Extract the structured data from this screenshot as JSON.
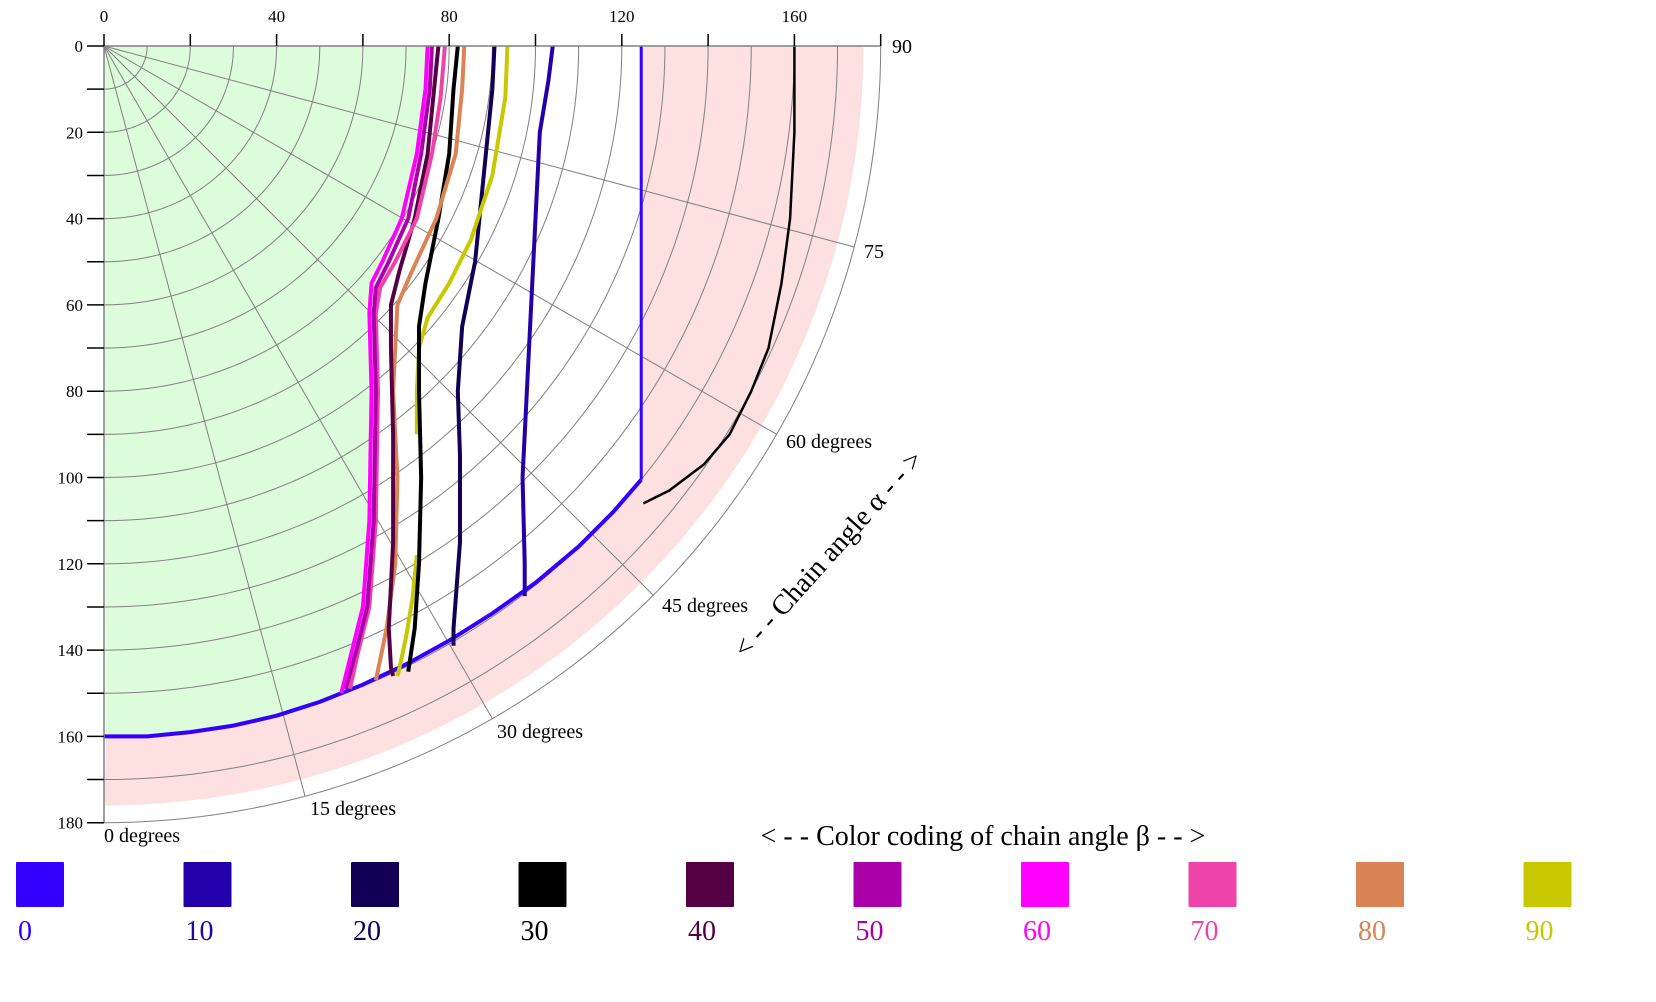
{
  "chart_data": {
    "type": "line",
    "title": "",
    "subtitle": "",
    "plot_kind": "quarter-polar chain-angle map",
    "xlabel": "",
    "ylabel": "",
    "xlim": [
      0,
      180
    ],
    "ylim": [
      0,
      180
    ],
    "x_axis_position": "top",
    "y_axis_direction": "downward",
    "x_ticks": [
      0,
      40,
      80,
      120,
      160
    ],
    "x_tick_labels": [
      "0",
      "40",
      "80",
      "120",
      "160"
    ],
    "x_minor_ticks": [
      0,
      20,
      40,
      60,
      80,
      100,
      120,
      140,
      160,
      180
    ],
    "y_ticks": [
      0,
      20,
      40,
      60,
      80,
      100,
      120,
      140,
      160,
      180
    ],
    "y_tick_labels": [
      "0",
      "20",
      "40",
      "60",
      "80",
      "100",
      "120",
      "140",
      "160",
      "180"
    ],
    "y_minor_ticks": [
      0,
      10,
      20,
      30,
      40,
      50,
      60,
      70,
      80,
      90,
      100,
      110,
      120,
      130,
      140,
      150,
      160,
      170,
      180
    ],
    "grid": true,
    "grid_arcs_radii": [
      10,
      20,
      30,
      40,
      50,
      60,
      70,
      80,
      90,
      100,
      110,
      120,
      130,
      140,
      150,
      160,
      170,
      180
    ],
    "grid_radials_deg": [
      0,
      15,
      30,
      45,
      60,
      75,
      90
    ],
    "angle_labels": [
      {
        "angle": 0,
        "text": "0 degrees"
      },
      {
        "angle": 15,
        "text": "15 degrees"
      },
      {
        "angle": 30,
        "text": "30 degrees"
      },
      {
        "angle": 45,
        "text": "45 degrees"
      },
      {
        "angle": 60,
        "text": "60 degrees"
      },
      {
        "angle": 75,
        "text": "75"
      },
      {
        "angle": 90,
        "text": "90"
      }
    ],
    "alpha_axis_label": "< - - Chain angle α - - >",
    "legend_title": "< - - Color coding of chain angle β - - >",
    "legend_placement": "bottom",
    "regions": [
      {
        "name": "green-zone",
        "color": "#dcfcdc",
        "description": "radius < 160 left of the curves"
      },
      {
        "name": "pink-zone",
        "color": "#fde0e0",
        "description": "radius 160–176 band plus x ≥ 124.5 inside radius 176"
      }
    ],
    "series": [
      {
        "name": "β=0 boundary arc",
        "beta": 0,
        "color": "#3300ff",
        "width": 4,
        "points": [
          [
            0,
            160
          ],
          [
            10,
            160
          ],
          [
            20,
            159
          ],
          [
            30,
            157.5
          ],
          [
            40,
            155.2
          ],
          [
            50,
            152
          ],
          [
            60,
            148
          ],
          [
            70,
            143.3
          ],
          [
            80,
            137.8
          ],
          [
            90,
            131.5
          ],
          [
            100,
            124.4
          ],
          [
            110,
            116
          ],
          [
            118,
            108
          ],
          [
            124.5,
            100.5
          ]
        ]
      },
      {
        "name": "β=0 vertical",
        "beta": 0,
        "color": "#3300ff",
        "width": 3,
        "points": [
          [
            124.5,
            0
          ],
          [
            124.5,
            100.5
          ]
        ]
      },
      {
        "name": "β=30 outer",
        "beta": 30,
        "color": "#000000",
        "width": 2.5,
        "points": [
          [
            160,
            0
          ],
          [
            160,
            20
          ],
          [
            159,
            40
          ],
          [
            157,
            55
          ],
          [
            154,
            70
          ],
          [
            150,
            80
          ],
          [
            145,
            90
          ],
          [
            139,
            97
          ],
          [
            131,
            103
          ],
          [
            125,
            106
          ]
        ]
      },
      {
        "name": "β=10",
        "beta": 10,
        "color": "#2200aa",
        "width": 4,
        "points": [
          [
            104,
            0
          ],
          [
            103,
            8
          ],
          [
            101,
            20
          ],
          [
            100,
            40
          ],
          [
            99,
            60
          ],
          [
            98,
            80
          ],
          [
            97,
            100
          ],
          [
            97.5,
            120
          ],
          [
            97.5,
            127.5
          ]
        ]
      },
      {
        "name": "β=20",
        "beta": 20,
        "color": "#110055",
        "width": 4,
        "points": [
          [
            90.5,
            0
          ],
          [
            90,
            10
          ],
          [
            88,
            30
          ],
          [
            86,
            50
          ],
          [
            83,
            65
          ],
          [
            82,
            80
          ],
          [
            82.5,
            95
          ],
          [
            82.5,
            115
          ],
          [
            81,
            135
          ],
          [
            81,
            139
          ]
        ]
      },
      {
        "name": "β=90",
        "beta": 90,
        "color": "#c8c800",
        "width": 4,
        "points": [
          [
            93.5,
            0
          ],
          [
            93,
            12
          ],
          [
            90,
            30
          ],
          [
            85,
            45
          ],
          [
            80,
            55
          ],
          [
            75,
            63
          ],
          [
            73,
            70
          ],
          [
            72.5,
            80
          ],
          [
            72.5,
            90
          ]
        ]
      },
      {
        "name": "β=90 lower",
        "beta": 90,
        "color": "#c8c800",
        "width": 4,
        "points": [
          [
            72.5,
            118
          ],
          [
            71.5,
            128
          ],
          [
            70,
            137
          ],
          [
            68.5,
            144
          ],
          [
            68,
            146
          ]
        ]
      },
      {
        "name": "β=30",
        "beta": 30,
        "color": "#000000",
        "width": 4,
        "points": [
          [
            82,
            0
          ],
          [
            81,
            10
          ],
          [
            80,
            25
          ],
          [
            77.5,
            40
          ],
          [
            74.5,
            55
          ],
          [
            73,
            65
          ],
          [
            73,
            80
          ],
          [
            73.5,
            100
          ],
          [
            73,
            120
          ],
          [
            72,
            135
          ],
          [
            70.5,
            145
          ]
        ]
      },
      {
        "name": "β=80",
        "beta": 80,
        "color": "#d98356",
        "width": 4,
        "points": [
          [
            83.5,
            0
          ],
          [
            83,
            10
          ],
          [
            81.5,
            25
          ],
          [
            77,
            40
          ],
          [
            71,
            53
          ],
          [
            68,
            60
          ],
          [
            67.5,
            70
          ],
          [
            67,
            80
          ],
          [
            68,
            100
          ],
          [
            67.5,
            120
          ],
          [
            65.5,
            135
          ],
          [
            63,
            147
          ]
        ]
      },
      {
        "name": "β=40",
        "beta": 40,
        "color": "#550044",
        "width": 4,
        "points": [
          [
            77.5,
            0
          ],
          [
            76.5,
            10
          ],
          [
            75,
            25
          ],
          [
            72,
            40
          ],
          [
            68.5,
            52
          ],
          [
            66.5,
            60
          ],
          [
            66.5,
            70
          ],
          [
            67,
            90
          ],
          [
            67,
            115
          ],
          [
            66,
            135
          ],
          [
            66.5,
            144
          ],
          [
            67,
            146
          ]
        ]
      },
      {
        "name": "β=70",
        "beta": 70,
        "color": "#ee44aa",
        "width": 4,
        "points": [
          [
            79,
            0
          ],
          [
            78,
            12
          ],
          [
            76,
            25
          ],
          [
            72.5,
            40
          ],
          [
            67.5,
            50
          ],
          [
            64,
            56
          ],
          [
            63,
            62
          ],
          [
            63.5,
            80
          ],
          [
            63,
            110
          ],
          [
            61.5,
            130
          ],
          [
            59,
            140
          ],
          [
            57,
            149
          ]
        ]
      },
      {
        "name": "β=50",
        "beta": 50,
        "color": "#aa00aa",
        "width": 4,
        "points": [
          [
            76,
            0
          ],
          [
            75.5,
            10
          ],
          [
            73.5,
            25
          ],
          [
            70.5,
            40
          ],
          [
            66,
            50
          ],
          [
            63,
            56
          ],
          [
            62.5,
            62
          ],
          [
            63,
            80
          ],
          [
            62.5,
            110
          ],
          [
            61,
            130
          ],
          [
            58.5,
            140
          ],
          [
            56,
            149
          ]
        ]
      },
      {
        "name": "β=60",
        "beta": 60,
        "color": "#ff00ff",
        "width": 4,
        "points": [
          [
            75,
            0
          ],
          [
            74.5,
            10
          ],
          [
            72.5,
            25
          ],
          [
            69,
            40
          ],
          [
            64.5,
            50
          ],
          [
            62,
            55
          ],
          [
            61.5,
            62
          ],
          [
            62,
            80
          ],
          [
            61.5,
            110
          ],
          [
            60,
            130
          ],
          [
            57.5,
            140
          ],
          [
            55,
            150
          ]
        ]
      }
    ],
    "legend": [
      {
        "label": "0",
        "color": "#3300ff"
      },
      {
        "label": "10",
        "color": "#2200aa"
      },
      {
        "label": "20",
        "color": "#110055"
      },
      {
        "label": "30",
        "color": "#000000"
      },
      {
        "label": "40",
        "color": "#550044"
      },
      {
        "label": "50",
        "color": "#aa00aa"
      },
      {
        "label": "60",
        "color": "#ff00ff"
      },
      {
        "label": "70",
        "color": "#ee44aa"
      },
      {
        "label": "80",
        "color": "#d98356"
      },
      {
        "label": "90",
        "color": "#c8c800"
      }
    ]
  }
}
